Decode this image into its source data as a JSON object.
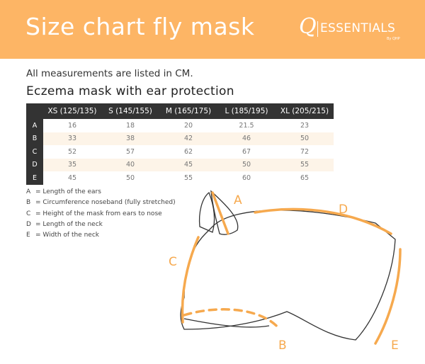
{
  "header": {
    "title": "Size chart fly mask",
    "logo_text": "Q|ESSENTIALS By QHP",
    "accent": "#fdb565"
  },
  "note": "All measurements are listed in CM.",
  "subtitle": "Eczema mask with ear protection",
  "table": {
    "columns": [
      "XS (125/135)",
      "S (145/155)",
      "M (165/175)",
      "L (185/195)",
      "XL (205/215)"
    ],
    "rows": [
      {
        "label": "A",
        "values": [
          "16",
          "18",
          "20",
          "21.5",
          "23"
        ]
      },
      {
        "label": "B",
        "values": [
          "33",
          "38",
          "42",
          "46",
          "50"
        ]
      },
      {
        "label": "C",
        "values": [
          "52",
          "57",
          "62",
          "67",
          "72"
        ]
      },
      {
        "label": "D",
        "values": [
          "35",
          "40",
          "45",
          "50",
          "55"
        ]
      },
      {
        "label": "E",
        "values": [
          "45",
          "50",
          "55",
          "60",
          "65"
        ]
      }
    ]
  },
  "legend": [
    {
      "key": "A",
      "text": "= Length of the ears"
    },
    {
      "key": "B",
      "text": "= Circumference noseband (fully stretched)"
    },
    {
      "key": "C",
      "text": "= Height of the mask from ears to nose"
    },
    {
      "key": "D",
      "text": "= Length of the neck"
    },
    {
      "key": "E",
      "text": "= Width of the neck"
    }
  ],
  "diagram": {
    "labels": {
      "a": "A",
      "b": "B",
      "c": "C",
      "d": "D",
      "e": "E"
    }
  }
}
